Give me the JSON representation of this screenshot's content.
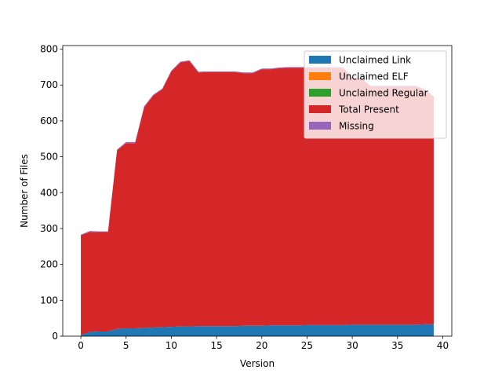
{
  "chart_data": {
    "type": "area",
    "stacked": true,
    "title": "",
    "xlabel": "Version",
    "ylabel": "Number of Files",
    "xlim": [
      -2,
      41
    ],
    "ylim": [
      0,
      810
    ],
    "xticks": [
      0,
      5,
      10,
      15,
      20,
      25,
      30,
      35,
      40
    ],
    "yticks": [
      0,
      100,
      200,
      300,
      400,
      500,
      600,
      700,
      800
    ],
    "grid": false,
    "legend_position": "top-right",
    "x": [
      0,
      1,
      2,
      3,
      4,
      5,
      6,
      7,
      8,
      9,
      10,
      11,
      12,
      13,
      14,
      15,
      16,
      17,
      18,
      19,
      20,
      21,
      22,
      23,
      24,
      25,
      26,
      27,
      28,
      29,
      30,
      31,
      32,
      33,
      34,
      35,
      36,
      37,
      38,
      39
    ],
    "series": [
      {
        "name": "Unclaimed Link",
        "color": "#1f77b4",
        "values": [
          3,
          12,
          13,
          13,
          20,
          22,
          22,
          23,
          24,
          25,
          26,
          27,
          27,
          28,
          28,
          28,
          28,
          28,
          29,
          29,
          29,
          30,
          30,
          30,
          30,
          31,
          31,
          31,
          31,
          31,
          32,
          32,
          32,
          32,
          32,
          32,
          32,
          32,
          33,
          33
        ]
      },
      {
        "name": "Unclaimed ELF",
        "color": "#ff7f0e",
        "values": [
          0,
          0,
          0,
          0,
          0,
          0,
          0,
          0,
          0,
          0,
          0,
          0,
          0,
          0,
          0,
          0,
          0,
          0,
          0,
          0,
          0,
          0,
          0,
          0,
          0,
          0,
          0,
          0,
          0,
          0,
          0,
          0,
          0,
          0,
          0,
          0,
          0,
          0,
          0,
          0
        ]
      },
      {
        "name": "Unclaimed Regular",
        "color": "#2ca02c",
        "values": [
          0,
          0,
          0,
          0,
          0,
          0,
          0,
          0,
          0,
          0,
          0,
          0,
          0,
          0,
          0,
          0,
          0,
          0,
          0,
          0,
          0,
          0,
          0,
          0,
          0,
          0,
          0,
          0,
          0,
          0,
          0,
          0,
          0,
          0,
          0,
          0,
          0,
          0,
          0,
          0
        ]
      },
      {
        "name": "Total Present",
        "color": "#d62728",
        "values": [
          278,
          279,
          277,
          277,
          498,
          516,
          516,
          615,
          647,
          663,
          712,
          736,
          740,
          707,
          708,
          708,
          708,
          708,
          704,
          704,
          715,
          714,
          717,
          718,
          718,
          717,
          717,
          717,
          717,
          717,
          687,
          687,
          664,
          664,
          664,
          664,
          664,
          664,
          654,
          634
        ]
      },
      {
        "name": "Missing",
        "color": "#9467bd",
        "values": [
          2,
          2,
          2,
          2,
          2,
          3,
          3,
          3,
          2,
          2,
          2,
          2,
          2,
          2,
          2,
          2,
          2,
          2,
          2,
          2,
          2,
          2,
          2,
          2,
          2,
          2,
          2,
          2,
          2,
          2,
          2,
          2,
          2,
          2,
          2,
          2,
          2,
          2,
          2,
          2
        ]
      }
    ]
  }
}
